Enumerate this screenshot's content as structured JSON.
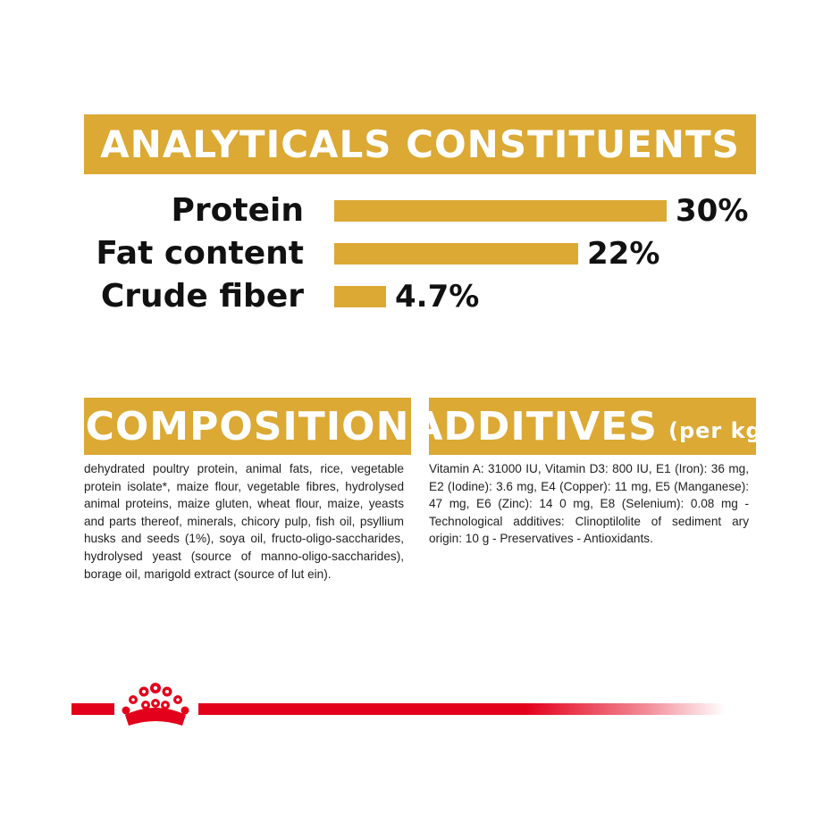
{
  "headings": {
    "analytics": "ANALYTICALS CONSTITUENTS",
    "composition": "COMPOSITION",
    "additives": "ADDITIVES",
    "additives_unit": "(per kg)"
  },
  "chart_data": {
    "type": "bar",
    "orientation": "horizontal",
    "title": "ANALYTICALS CONSTITUENTS",
    "categories": [
      "Protein",
      "Fat content",
      "Crude fiber"
    ],
    "values": [
      30,
      22,
      4.7
    ],
    "value_labels": [
      "30%",
      "22%",
      "4.7%"
    ],
    "unit": "%",
    "xlim": [
      0,
      30
    ],
    "grid": false,
    "legend": "none",
    "bar_color": "#dba934"
  },
  "composition_text": "dehydrated poultry protein, animal fats, rice, vegetable protein isolate*, maize flour, vegetable fibres, hydrolysed animal proteins, maize gluten, wheat flour, maize, yeasts and parts thereof, minerals, chicory pulp, fish oil, psyllium husks and seeds (1%), soya oil, fructo-oligo-saccharides, hydrolysed yeast (source of manno-oligo-saccharides), borage oil, marigold extract (source of lut ein).",
  "additives_text": "Vitamin A: 31000 IU, Vitamin D3: 800 IU, E1 (Iron): 36 mg, E2 (Iodine): 3.6 mg, E4 (Copper): 11 mg, E5 (Manganese): 47 mg, E6 (Zinc): 14 0 mg, E8 (Selenium): 0.08 mg -Technological additives: Clinoptilolite of sediment ary origin: 10 g - Preservatives - Antioxidants.",
  "logo": {
    "icon": "crown-icon",
    "color": "#e3001b"
  },
  "colors": {
    "accent": "#dba934",
    "brand": "#e3001b",
    "text": "#111111"
  }
}
